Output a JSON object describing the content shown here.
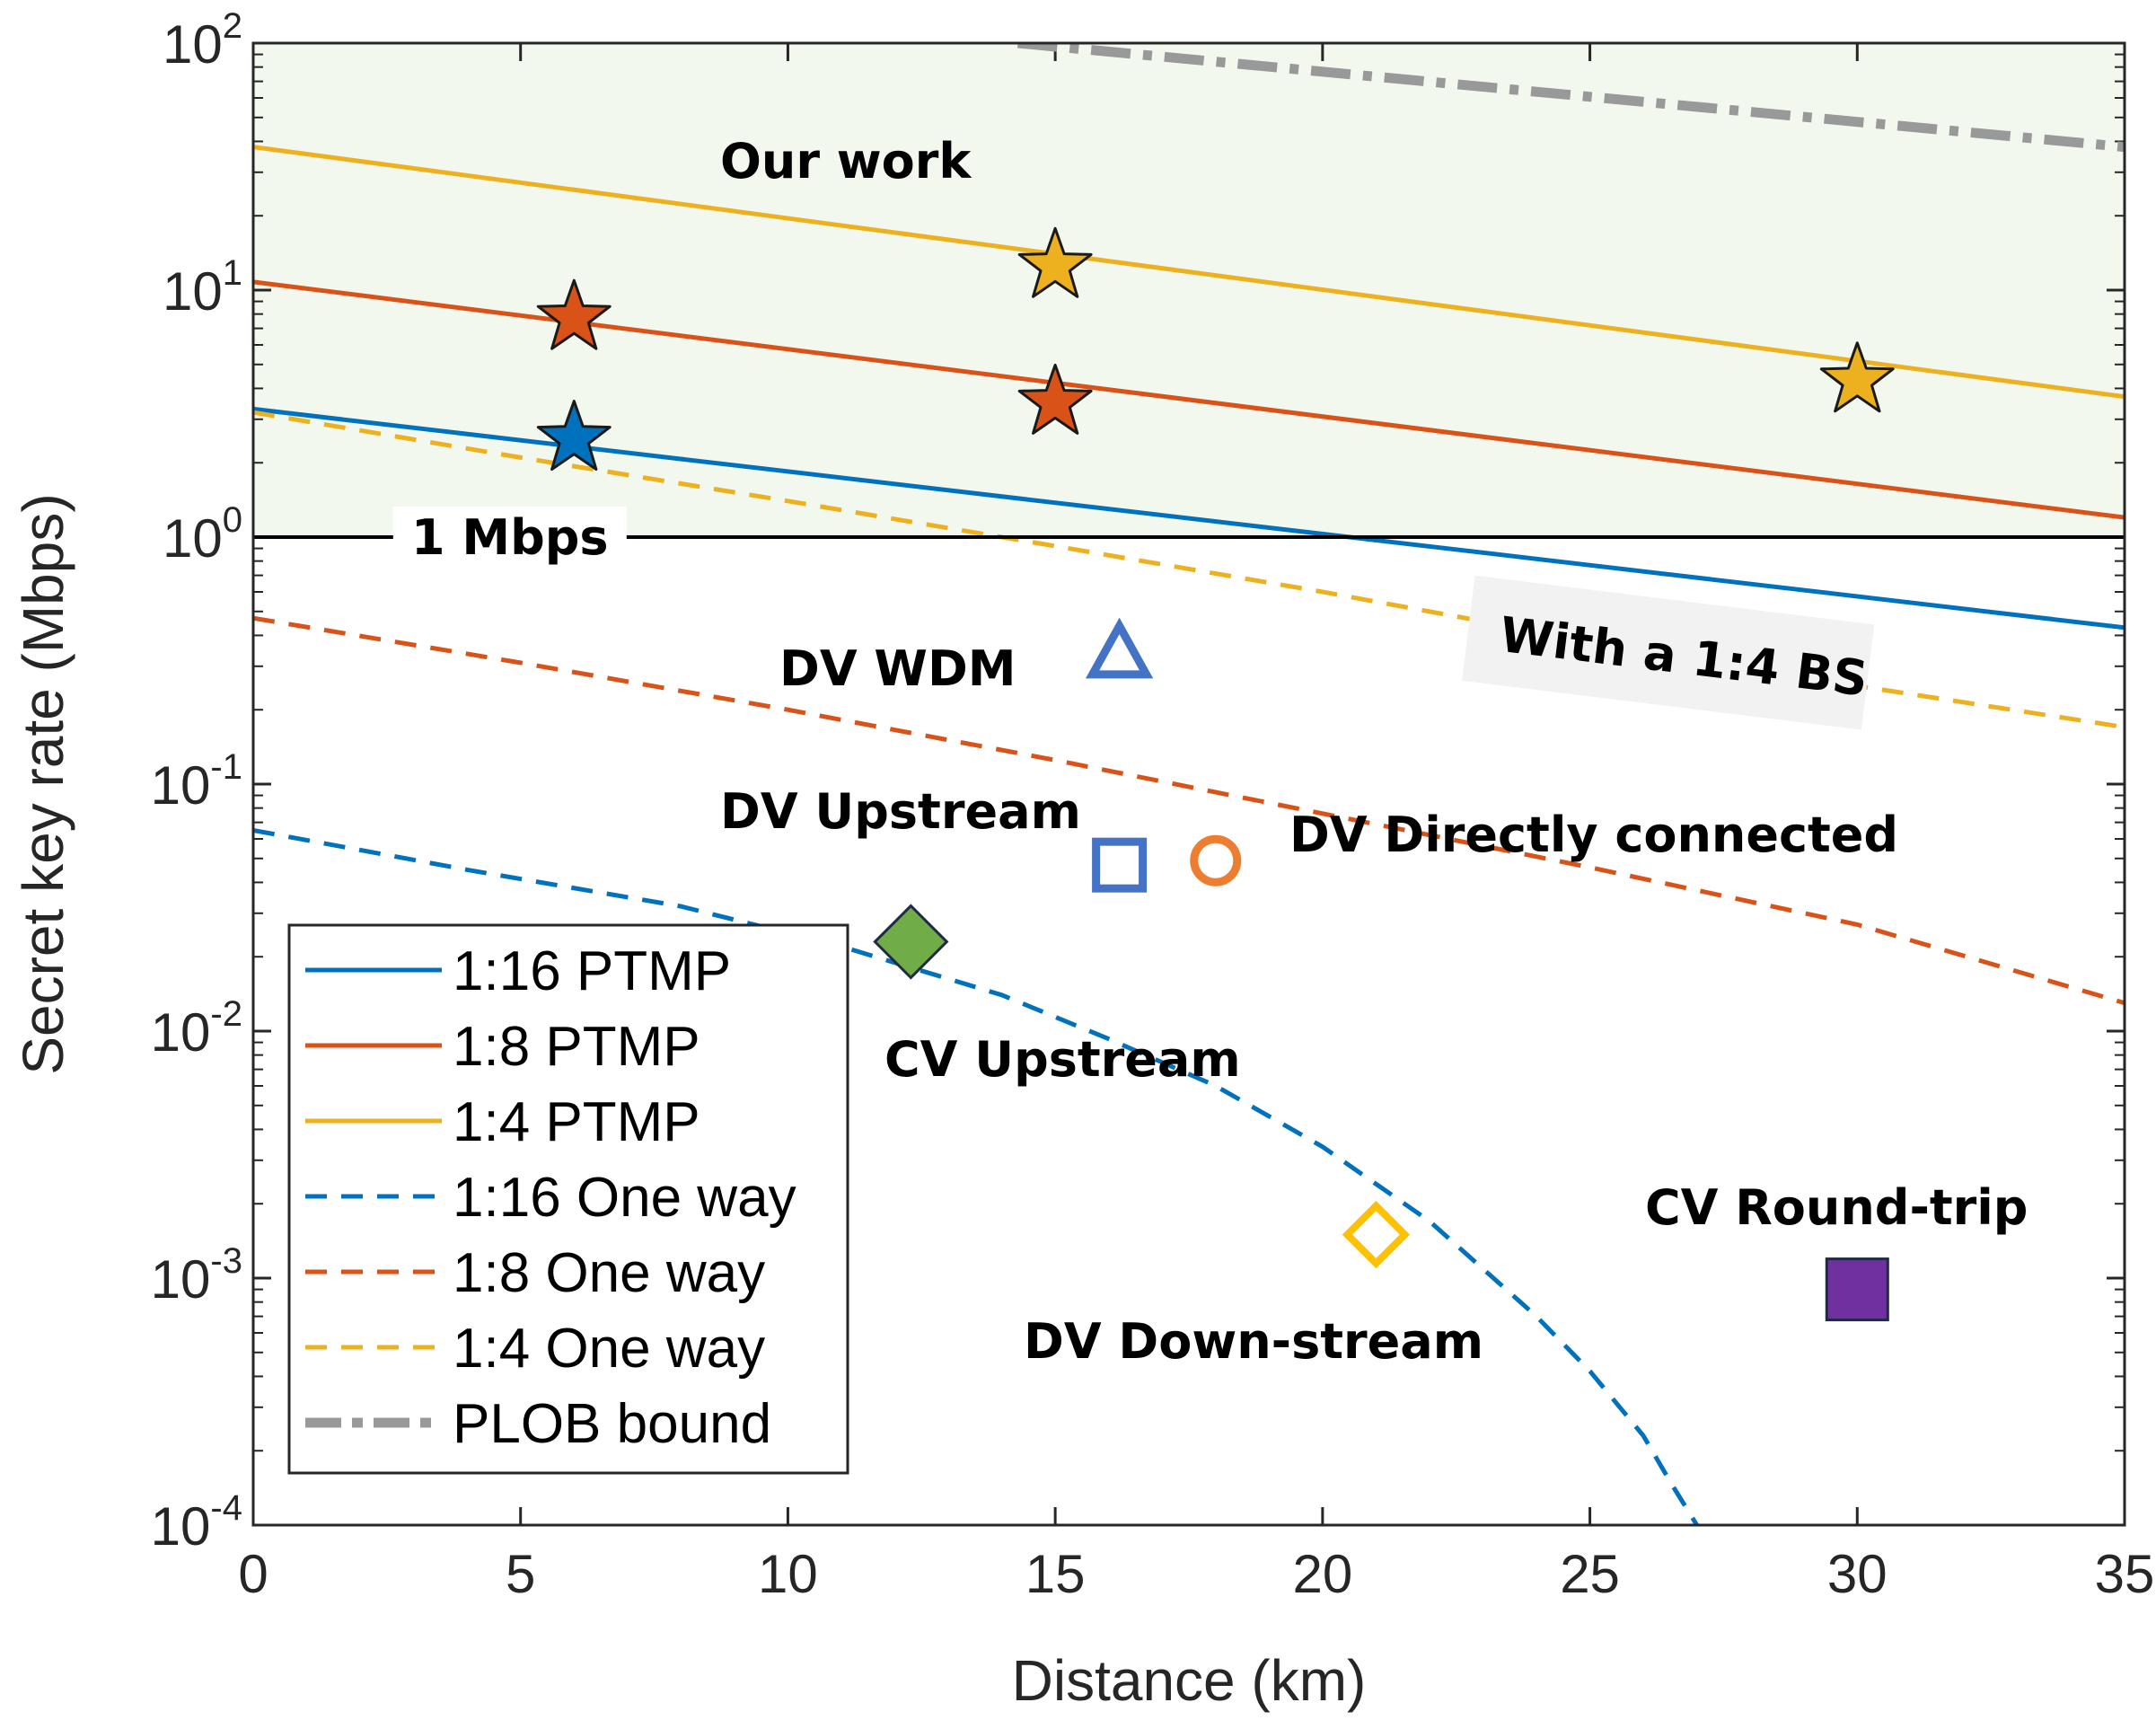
{
  "chart_data": {
    "type": "line",
    "title": "",
    "xlabel": "Distance (km)",
    "ylabel": "Secret key rate (Mbps)",
    "xlim": [
      0,
      35
    ],
    "ylim": [
      0.0001,
      100
    ],
    "yscale": "log",
    "xticks": [
      "0",
      "5",
      "10",
      "15",
      "20",
      "25",
      "30",
      "35"
    ],
    "xtick_values": [
      0,
      5,
      10,
      15,
      20,
      25,
      30,
      35
    ],
    "yticks": [
      {
        "value": 100,
        "exp": "2"
      },
      {
        "value": 10,
        "exp": "1"
      },
      {
        "value": 1,
        "exp": "0"
      },
      {
        "value": 0.1,
        "exp": "-1"
      },
      {
        "value": 0.01,
        "exp": "-2"
      },
      {
        "value": 0.001,
        "exp": "-3"
      },
      {
        "value": 0.0001,
        "exp": "-4"
      }
    ],
    "ytick_base": "10",
    "shaded_region": {
      "from": 1,
      "to": 100,
      "color": "#f3f8ee"
    },
    "threshold_line": {
      "value": 1,
      "label": "1 Mbps",
      "color": "#000000"
    },
    "series": [
      {
        "name": "1:16 PTMP",
        "style": "solid",
        "color": "#0072BD",
        "x": [
          0,
          35
        ],
        "y": [
          3.3,
          0.43
        ]
      },
      {
        "name": "1:8 PTMP",
        "style": "solid",
        "color": "#D95319",
        "x": [
          0,
          35
        ],
        "y": [
          10.8,
          1.2
        ]
      },
      {
        "name": "1:4 PTMP",
        "style": "solid",
        "color": "#EDB120",
        "x": [
          0,
          35
        ],
        "y": [
          38,
          3.7
        ]
      },
      {
        "name": "1:16 One way",
        "style": "dashed",
        "color": "#0072BD",
        "x": [
          0,
          4,
          8,
          11,
          14,
          16,
          18,
          20,
          22,
          24,
          25,
          26,
          26.5,
          27
        ],
        "y": [
          0.065,
          0.045,
          0.032,
          0.022,
          0.014,
          0.0093,
          0.006,
          0.0034,
          0.0017,
          0.0007,
          0.00042,
          0.00023,
          0.00015,
          0.0001
        ]
      },
      {
        "name": "1:8 One way",
        "style": "dashed",
        "color": "#D95319",
        "x": [
          0,
          5,
          10,
          15,
          20,
          25,
          30,
          35
        ],
        "y": [
          0.47,
          0.31,
          0.2,
          0.125,
          0.076,
          0.046,
          0.027,
          0.013
        ]
      },
      {
        "name": "1:4 One way",
        "style": "dashed",
        "color": "#EDB120",
        "x": [
          0,
          5,
          10,
          15,
          20,
          25,
          30,
          35
        ],
        "y": [
          3.2,
          2.1,
          1.4,
          0.92,
          0.6,
          0.38,
          0.25,
          0.17
        ]
      },
      {
        "name": "PLOB bound",
        "style": "dashdot",
        "color": "#999999",
        "x": [
          14.3,
          35
        ],
        "y": [
          100,
          38
        ]
      }
    ],
    "markers": [
      {
        "group": "Our work",
        "shape": "star",
        "color": "#0072BD",
        "x": 6,
        "y": 2.5
      },
      {
        "group": "Our work",
        "shape": "star",
        "color": "#D95319",
        "x": 6,
        "y": 7.7
      },
      {
        "group": "Our work",
        "shape": "star",
        "color": "#D95319",
        "x": 15,
        "y": 3.5
      },
      {
        "group": "Our work",
        "shape": "star",
        "color": "#EDB120",
        "x": 15,
        "y": 12.5
      },
      {
        "group": "Our work",
        "shape": "star",
        "color": "#EDB120",
        "x": 30,
        "y": 4.3
      },
      {
        "group": "DV WDM",
        "shape": "triangle-open",
        "color": "#4472C4",
        "x": 16.2,
        "y": 0.34
      },
      {
        "group": "DV Upstream",
        "shape": "square-open",
        "color": "#4472C4",
        "x": 16.2,
        "y": 0.047
      },
      {
        "group": "DV Directly connected",
        "shape": "circle-open",
        "color": "#ED7D31",
        "x": 18,
        "y": 0.049
      },
      {
        "group": "CV Upstream",
        "shape": "diamond-filled",
        "color": "#70AD47",
        "x": 12.3,
        "y": 0.023
      },
      {
        "group": "DV Down-stream",
        "shape": "diamond-open",
        "color": "#FFC000",
        "x": 21,
        "y": 0.0015
      },
      {
        "group": "CV Round-trip",
        "shape": "square-filled",
        "color": "#7030A0",
        "x": 30,
        "y": 0.0009
      }
    ],
    "annotations": [
      {
        "text": "Our work"
      },
      {
        "text": "DV WDM"
      },
      {
        "text": "DV Upstream"
      },
      {
        "text": "DV Directly connected"
      },
      {
        "text": "CV Upstream"
      },
      {
        "text": "DV Down-stream"
      },
      {
        "text": "CV Round-trip"
      },
      {
        "text": "With a 1:4 BS"
      }
    ],
    "legend": {
      "placement": "bottom-left",
      "entries": [
        "1:16 PTMP",
        "1:8 PTMP",
        "1:4 PTMP",
        "1:16 One way",
        "1:8 One way",
        "1:4 One way",
        "PLOB bound"
      ]
    }
  }
}
